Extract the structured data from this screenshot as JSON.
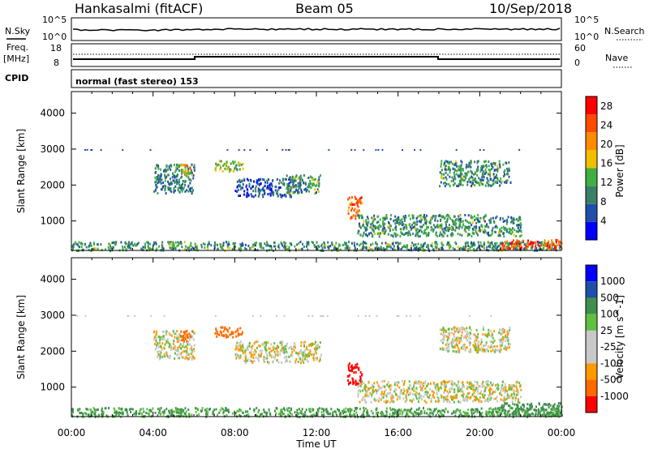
{
  "header": {
    "station": "Hankasalmi (fitACF)",
    "beam": "Beam 05",
    "date": "10/Sep/2018"
  },
  "strip_labels": {
    "nsky": "N.Sky",
    "nsky_ticks": [
      "10^5",
      "10^0"
    ],
    "nsearch": "N.Search",
    "nsearch_ticks": [
      "10^5",
      "10^0"
    ],
    "freq_line1": "Freq.",
    "freq_line2": "[MHz]",
    "freq_ticks": [
      "18",
      "8"
    ],
    "nave": "Nave",
    "nave_ticks": [
      "60",
      "0"
    ],
    "cpid": "CPID",
    "cpid_text": "normal (fast stereo) 153"
  },
  "colors": {
    "power": [
      "#0000ff",
      "#1f4fa8",
      "#3a7f6a",
      "#3fb040",
      "#f0c000",
      "#ff8c00",
      "#ff4a00",
      "#ff0000"
    ],
    "velocity": [
      "#ff0000",
      "#ff6a00",
      "#ff9a00",
      "#c8c8c8",
      "#c8c8c8",
      "#60c040",
      "#3f8f4f",
      "#1f4fa8",
      "#0000ff"
    ]
  },
  "chart_data": [
    {
      "type": "heatmap",
      "panel": "power",
      "ylabel": "Slant Range [km]",
      "yticks": [
        "1000",
        "2000",
        "3000",
        "4000"
      ],
      "ylim": [
        180,
        4600
      ],
      "xlim": [
        0,
        24
      ],
      "xticks": [
        "00:00",
        "04:00",
        "08:00",
        "12:00",
        "16:00",
        "20:00",
        "00:00"
      ],
      "colorbar_label": "Power [dB]",
      "colorbar_ticks": [
        "4",
        "8",
        "12",
        "16",
        "20",
        "24",
        "28"
      ],
      "colorbar_range": [
        0,
        30
      ],
      "regions": [
        {
          "x0": 0.0,
          "x1": 24.0,
          "y0": 200,
          "y1": 450,
          "level": 0.35
        },
        {
          "x0": 4.0,
          "x1": 6.0,
          "y0": 1800,
          "y1": 2600,
          "level": 0.3
        },
        {
          "x0": 5.3,
          "x1": 5.9,
          "y0": 2300,
          "y1": 2600,
          "level": 0.6
        },
        {
          "x0": 7.0,
          "x1": 8.4,
          "y0": 2400,
          "y1": 2700,
          "level": 0.45
        },
        {
          "x0": 8.0,
          "x1": 11.0,
          "y0": 1700,
          "y1": 2200,
          "level": 0.2
        },
        {
          "x0": 10.5,
          "x1": 12.2,
          "y0": 1800,
          "y1": 2300,
          "level": 0.35
        },
        {
          "x0": 13.5,
          "x1": 14.2,
          "y0": 1100,
          "y1": 1700,
          "level": 0.75
        },
        {
          "x0": 14.0,
          "x1": 22.0,
          "y0": 600,
          "y1": 1200,
          "level": 0.35
        },
        {
          "x0": 18.0,
          "x1": 21.5,
          "y0": 2000,
          "y1": 2700,
          "level": 0.35
        },
        {
          "x0": 21.0,
          "x1": 24.0,
          "y0": 250,
          "y1": 500,
          "level": 0.85
        }
      ]
    },
    {
      "type": "heatmap",
      "panel": "velocity",
      "ylabel": "Slant Range [km]",
      "yticks": [
        "1000",
        "2000",
        "3000",
        "4000"
      ],
      "ylim": [
        180,
        4600
      ],
      "xlim": [
        0,
        24
      ],
      "xticks": [
        "00:00",
        "04:00",
        "08:00",
        "12:00",
        "16:00",
        "20:00",
        "00:00"
      ],
      "xlabel": "Time UT",
      "colorbar_label": "Velocity [m s^-1]",
      "colorbar_ticks": [
        "1000",
        "500",
        "100",
        "25",
        "-25",
        "-100",
        "-500",
        "-1000"
      ],
      "regions": [
        {
          "x0": 0.0,
          "x1": 24.0,
          "y0": 200,
          "y1": 450,
          "velocity": 120
        },
        {
          "x0": 4.0,
          "x1": 6.0,
          "y0": 1800,
          "y1": 2600,
          "velocity": 0
        },
        {
          "x0": 5.3,
          "x1": 5.9,
          "y0": 2300,
          "y1": 2600,
          "velocity": -300
        },
        {
          "x0": 7.0,
          "x1": 8.4,
          "y0": 2400,
          "y1": 2700,
          "velocity": -400
        },
        {
          "x0": 8.0,
          "x1": 12.2,
          "y0": 1700,
          "y1": 2300,
          "velocity": 0
        },
        {
          "x0": 13.5,
          "x1": 14.2,
          "y0": 1100,
          "y1": 1700,
          "velocity": -900
        },
        {
          "x0": 14.0,
          "x1": 22.0,
          "y0": 600,
          "y1": 1200,
          "velocity": 0
        },
        {
          "x0": 18.0,
          "x1": 21.5,
          "y0": 2000,
          "y1": 2700,
          "velocity": 0
        },
        {
          "x0": 21.0,
          "x1": 24.0,
          "y0": 250,
          "y1": 600,
          "velocity": 150
        }
      ]
    }
  ]
}
